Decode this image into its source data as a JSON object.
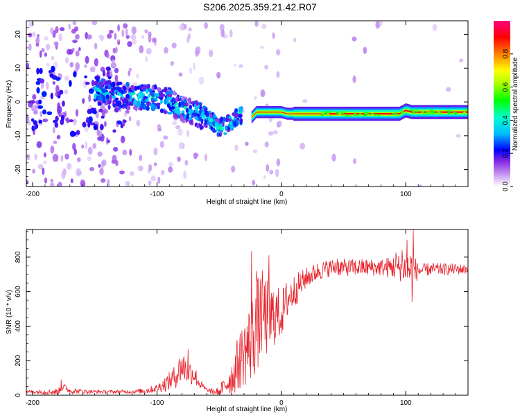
{
  "title": "S206.2025.359.21.42.R07",
  "colors": {
    "snr_line": "#e8222a",
    "axis": "#000000",
    "spectrum_core": "#e8222a"
  },
  "chart_data": [
    {
      "type": "heatmap",
      "name": "spectrogram",
      "xlabel": "Height of straight line (km)",
      "ylabel": "Frequency (Hz)",
      "xlim": [
        -205,
        150
      ],
      "ylim": [
        -25,
        24
      ],
      "x_ticks": [
        -200,
        -100,
        0,
        100
      ],
      "y_ticks": [
        -20,
        -10,
        0,
        10,
        20
      ],
      "ridge": {
        "x": [
          -145,
          -130,
          -120,
          -110,
          -100,
          -90,
          -80,
          -70,
          -60,
          -55,
          -50,
          -45,
          -40,
          -35,
          -30,
          -25,
          -20,
          -15,
          -10,
          -5,
          0,
          5,
          10,
          20,
          40,
          60,
          80,
          95,
          100,
          105,
          120,
          150
        ],
        "y": [
          3,
          2,
          1.5,
          1.5,
          1,
          0,
          -2,
          -3,
          -5,
          -6,
          -7.5,
          -7,
          -6,
          -4,
          -4,
          -5,
          -3,
          -3,
          -3,
          -3,
          -3,
          -3.5,
          -3.5,
          -3.5,
          -3.5,
          -3.5,
          -3.5,
          -3.5,
          -2.5,
          -3,
          -3,
          -3
        ]
      },
      "colorbar": {
        "label": "Normalized spectral amplitude",
        "ticks": [
          "0.0",
          "0.2",
          "0.4",
          "0.6",
          "0.8"
        ],
        "range": [
          0,
          1
        ],
        "stops": [
          {
            "value": 0.0,
            "color": "#ffffff"
          },
          {
            "value": 0.05,
            "color": "#d7b8f5"
          },
          {
            "value": 0.15,
            "color": "#8a2be2"
          },
          {
            "value": 0.22,
            "color": "#0000ff"
          },
          {
            "value": 0.32,
            "color": "#00bfff"
          },
          {
            "value": 0.42,
            "color": "#00ffcc"
          },
          {
            "value": 0.52,
            "color": "#00ff00"
          },
          {
            "value": 0.62,
            "color": "#aaff00"
          },
          {
            "value": 0.7,
            "color": "#ffff00"
          },
          {
            "value": 0.8,
            "color": "#ff8000"
          },
          {
            "value": 0.9,
            "color": "#ff0000"
          },
          {
            "value": 1.0,
            "color": "#ff0080"
          }
        ]
      }
    },
    {
      "type": "line",
      "name": "snr",
      "xlabel": "Height of straight line (km)",
      "ylabel": "SNR (10 * v/v)",
      "xlim": [
        -205,
        150
      ],
      "ylim": [
        0,
        960
      ],
      "x_ticks": [
        -200,
        -100,
        0,
        100
      ],
      "y_ticks": [
        0,
        200,
        400,
        600,
        800
      ],
      "envelope": {
        "x": [
          -205,
          -180,
          -175,
          -170,
          -150,
          -120,
          -110,
          -100,
          -90,
          -85,
          -80,
          -75,
          -70,
          -65,
          -60,
          -55,
          -50,
          -45,
          -40,
          -35,
          -30,
          -25,
          -20,
          -15,
          -10,
          -5,
          0,
          5,
          10,
          15,
          20,
          25,
          30,
          40,
          60,
          80,
          100,
          105,
          110,
          120,
          150
        ],
        "y": [
          20,
          20,
          50,
          25,
          20,
          20,
          25,
          40,
          80,
          110,
          170,
          140,
          120,
          60,
          30,
          20,
          20,
          60,
          100,
          180,
          250,
          300,
          400,
          480,
          430,
          470,
          470,
          560,
          600,
          640,
          680,
          700,
          720,
          740,
          740,
          740,
          740,
          720,
          720,
          730,
          730
        ]
      },
      "noise": {
        "x": [
          -205,
          -180,
          -150,
          -120,
          -100,
          -85,
          -80,
          -70,
          -65,
          -60,
          -55,
          -50,
          -45,
          -40,
          -35,
          -30,
          -20,
          -10,
          0,
          10,
          20,
          40,
          80,
          95,
          100,
          105,
          110,
          150
        ],
        "amp": [
          8,
          20,
          10,
          10,
          25,
          70,
          100,
          60,
          30,
          10,
          20,
          30,
          60,
          100,
          160,
          200,
          280,
          220,
          140,
          100,
          60,
          50,
          50,
          80,
          90,
          130,
          40,
          30
        ]
      },
      "spikes": [
        {
          "x": -177,
          "y": 90
        },
        {
          "x": -75,
          "y": 265
        },
        {
          "x": -24,
          "y": 835
        },
        {
          "x": -20,
          "y": 720
        },
        {
          "x": -10,
          "y": 810
        },
        {
          "x": 45,
          "y": 790
        },
        {
          "x": 92,
          "y": 825
        },
        {
          "x": 97,
          "y": 840
        },
        {
          "x": 101,
          "y": 900
        },
        {
          "x": 106,
          "y": 960
        },
        {
          "x": 105,
          "y": 540
        }
      ]
    }
  ]
}
